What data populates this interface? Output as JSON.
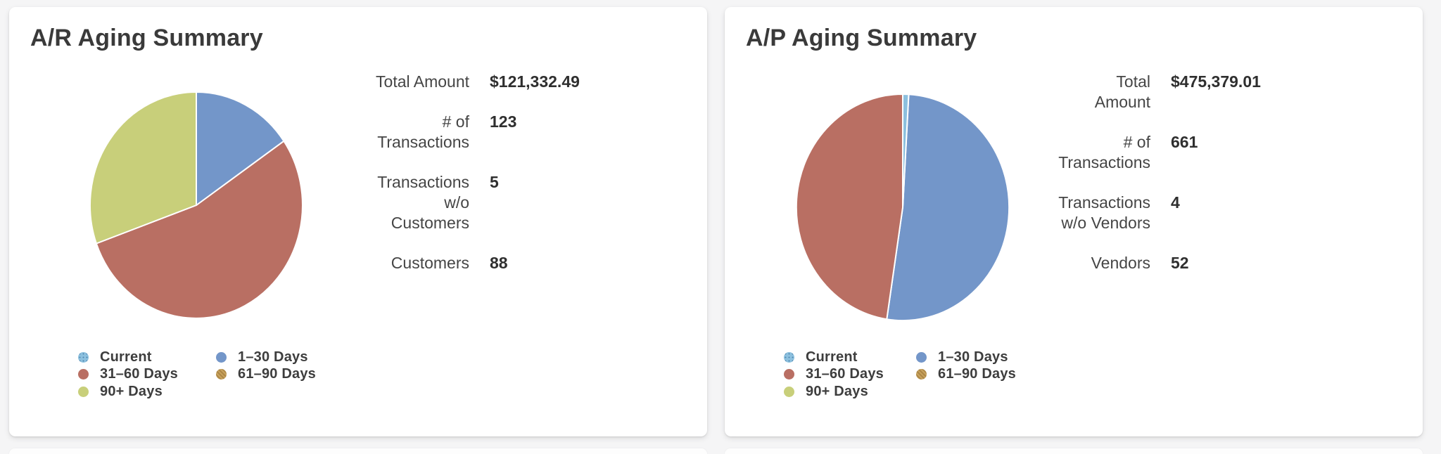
{
  "page": {
    "background_color": "#f5f5f6",
    "card_background": "#ffffff"
  },
  "palette": {
    "current": "#8cc0de",
    "days_1_30": "#7396c9",
    "days_31_60": "#b96f63",
    "days_61_90": "#c8a35e",
    "days_90_plus": "#c8cf7a",
    "title_text": "#3a3a3a",
    "label_text": "#454545",
    "value_text": "#2f2f2f"
  },
  "cards": [
    {
      "title": "A/R Aging Summary",
      "stats": [
        {
          "label": "Total Amount",
          "label_lines": [
            "Total Amount"
          ],
          "value": "$121,332.49"
        },
        {
          "label": "# of Transactions",
          "label_lines": [
            "# of",
            "Transactions"
          ],
          "value": "123"
        },
        {
          "label": "Transactions w/o Customers",
          "label_lines": [
            "Transactions",
            "w/o",
            "Customers"
          ],
          "value": "5"
        },
        {
          "label": "Customers",
          "label_lines": [
            "Customers"
          ],
          "value": "88"
        }
      ]
    },
    {
      "title": "A/P Aging Summary",
      "stats": [
        {
          "label": "Total Amount",
          "label_lines": [
            "Total",
            "Amount"
          ],
          "value": "$475,379.01"
        },
        {
          "label": "# of Transactions",
          "label_lines": [
            "# of",
            "Transactions"
          ],
          "value": "661"
        },
        {
          "label": "Transactions w/o Vendors",
          "label_lines": [
            "Transactions",
            "w/o Vendors"
          ],
          "value": "4"
        },
        {
          "label": "Vendors",
          "label_lines": [
            "Vendors"
          ],
          "value": "52"
        }
      ]
    }
  ],
  "chart_data": [
    {
      "type": "pie",
      "title": "A/R Aging Summary",
      "total_amount": "$121,332.49",
      "categories": [
        "Current",
        "1–30 Days",
        "31–60 Days",
        "61–90 Days",
        "90+ Days"
      ],
      "values_percent": [
        0,
        15.4,
        54.1,
        0,
        30.5
      ],
      "colors": [
        "#8cc0de",
        "#7396c9",
        "#b96f63",
        "#c8a35e",
        "#c8cf7a"
      ],
      "start_angle_deg": 0,
      "direction": "clockwise",
      "legend_position": "bottom-left",
      "legend": [
        {
          "label": "Current",
          "color": "#8cc0de",
          "pattern": "dots"
        },
        {
          "label": "1–30 Days",
          "color": "#7396c9",
          "pattern": "solid"
        },
        {
          "label": "31–60 Days",
          "color": "#b96f63",
          "pattern": "solid"
        },
        {
          "label": "61–90 Days",
          "color": "#c8a35e",
          "pattern": "hatch"
        },
        {
          "label": "90+ Days",
          "color": "#c8cf7a",
          "pattern": "solid"
        }
      ]
    },
    {
      "type": "pie",
      "title": "A/P Aging Summary",
      "total_amount": "$475,379.01",
      "categories": [
        "Current",
        "1–30 Days",
        "31–60 Days",
        "61–90 Days",
        "90+ Days"
      ],
      "values_percent": [
        0.9,
        51.5,
        47.6,
        0,
        0
      ],
      "colors": [
        "#8cc0de",
        "#7396c9",
        "#b96f63",
        "#c8a35e",
        "#c8cf7a"
      ],
      "start_angle_deg": 0,
      "direction": "clockwise",
      "legend_position": "bottom-left",
      "legend": [
        {
          "label": "Current",
          "color": "#8cc0de",
          "pattern": "dots"
        },
        {
          "label": "1–30 Days",
          "color": "#7396c9",
          "pattern": "solid"
        },
        {
          "label": "31–60 Days",
          "color": "#b96f63",
          "pattern": "solid"
        },
        {
          "label": "61–90 Days",
          "color": "#c8a35e",
          "pattern": "hatch"
        },
        {
          "label": "90+ Days",
          "color": "#c8cf7a",
          "pattern": "solid"
        }
      ]
    }
  ]
}
